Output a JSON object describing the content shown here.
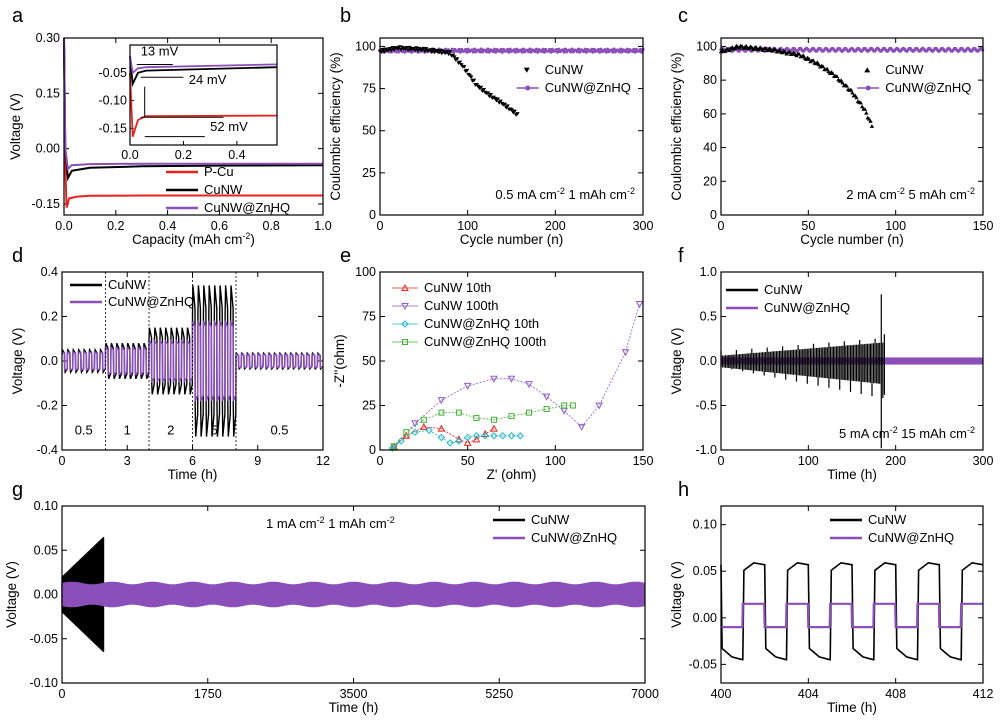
{
  "colors": {
    "black": "#000000",
    "red": "#e8231f",
    "purple": "#8a4fb8",
    "cyan": "#22b9c9",
    "green": "#46b036",
    "violet": "#8d5ec6"
  },
  "chart_data": [
    {
      "id": "a",
      "panel_label": "a",
      "type": "line",
      "xlabel": "Capacity (mAh cm",
      "xlabel_sup": "-2",
      "xlabel_end": ")",
      "ylabel": "Voltage (V)",
      "xlim": [
        0,
        1.0
      ],
      "ylim": [
        -0.18,
        0.3
      ],
      "xticks": [
        "0.0",
        "0.2",
        "0.4",
        "0.6",
        "0.8",
        "1.0"
      ],
      "yticks": [
        "-0.15",
        "0.00",
        "0.15",
        "0.30"
      ],
      "legend": [
        "P-Cu",
        "CuNW",
        "CuNW@ZnHQ"
      ],
      "series": [
        {
          "name": "P-Cu",
          "color": "red",
          "x": [
            0,
            0.005,
            0.01,
            0.02,
            0.05,
            0.1,
            0.3,
            0.6,
            1.0
          ],
          "y": [
            0.3,
            -0.05,
            -0.16,
            -0.135,
            -0.13,
            -0.128,
            -0.127,
            -0.127,
            -0.127
          ]
        },
        {
          "name": "CuNW",
          "color": "black",
          "x": [
            0,
            0.005,
            0.015,
            0.03,
            0.1,
            0.3,
            0.6,
            1.0
          ],
          "y": [
            0.3,
            0.0,
            -0.08,
            -0.06,
            -0.052,
            -0.048,
            -0.046,
            -0.045
          ]
        },
        {
          "name": "CuNW@ZnHQ",
          "color": "purple",
          "x": [
            0,
            0.005,
            0.015,
            0.03,
            0.1,
            0.3,
            0.6,
            1.0
          ],
          "y": [
            0.3,
            0.0,
            -0.055,
            -0.045,
            -0.042,
            -0.041,
            -0.041,
            -0.041
          ]
        }
      ],
      "inset": {
        "xlim": [
          0,
          0.55
        ],
        "ylim": [
          -0.18,
          0.0
        ],
        "xticks": [
          "0.0",
          "0.2",
          "0.4"
        ],
        "yticks": [
          "-0.05",
          "-0.10",
          "-0.15"
        ],
        "annotations": [
          "13 mV",
          "24 mV",
          "52 mV"
        ]
      }
    },
    {
      "id": "b",
      "panel_label": "b",
      "type": "scatter",
      "xlabel": "Cycle number (n)",
      "ylabel": "Coulombic efficiency (%)",
      "xlim": [
        0,
        300
      ],
      "ylim": [
        0,
        105
      ],
      "xticks": [
        "0",
        "100",
        "200",
        "300"
      ],
      "yticks": [
        "0",
        "25",
        "50",
        "75",
        "100"
      ],
      "legend": [
        "CuNW",
        "CuNW@ZnHQ"
      ],
      "annotation": {
        "pre": "0.5 mA cm",
        "sup1": "-2",
        "mid": " 1 mAh cm",
        "sup2": "-2"
      },
      "series": [
        {
          "name": "CuNW",
          "color": "black",
          "x": [
            0,
            20,
            50,
            80,
            95,
            110,
            125,
            140,
            158
          ],
          "y": [
            97,
            99,
            98,
            96,
            88,
            77,
            71,
            66,
            59
          ]
        },
        {
          "name": "CuNW@ZnHQ",
          "color": "purple",
          "x": [
            0,
            300
          ],
          "y": [
            97.5,
            97.5
          ]
        }
      ]
    },
    {
      "id": "c",
      "panel_label": "c",
      "type": "scatter",
      "xlabel": "Cycle number (n)",
      "ylabel": "Coulombic efficiency (%)",
      "xlim": [
        0,
        150
      ],
      "ylim": [
        0,
        105
      ],
      "xticks": [
        "0",
        "50",
        "100",
        "150"
      ],
      "yticks": [
        "0",
        "20",
        "40",
        "60",
        "80",
        "100"
      ],
      "legend": [
        "CuNW",
        "CuNW@ZnHQ"
      ],
      "annotation": {
        "pre": "2 mA cm",
        "sup1": "-2",
        "mid": " 5 mAh cm",
        "sup2": "-2"
      },
      "series": [
        {
          "name": "CuNW",
          "color": "black",
          "x": [
            0,
            10,
            30,
            45,
            55,
            65,
            75,
            82,
            87
          ],
          "y": [
            97,
            100,
            98,
            95,
            90,
            83,
            73,
            63,
            52
          ]
        },
        {
          "name": "CuNW@ZnHQ",
          "color": "purple",
          "x": [
            0,
            150
          ],
          "y": [
            98,
            98
          ]
        }
      ]
    },
    {
      "id": "d",
      "panel_label": "d",
      "type": "line",
      "xlabel": "Time (h)",
      "ylabel": "Voltage (V)",
      "xlim": [
        0,
        12
      ],
      "ylim": [
        -0.4,
        0.4
      ],
      "xticks": [
        "0",
        "3",
        "6",
        "9",
        "12"
      ],
      "yticks": [
        "-0.4",
        "-0.2",
        "0.0",
        "0.2",
        "0.4"
      ],
      "legend": [
        "CuNW",
        "CuNW@ZnHQ"
      ],
      "current_labels": [
        "0.5",
        "1",
        "2",
        "5",
        "0.5"
      ],
      "segments": [
        {
          "t": [
            0,
            2
          ],
          "label": "0.5",
          "cunw_amp": 0.05,
          "znhq_amp": 0.04
        },
        {
          "t": [
            2,
            4
          ],
          "label": "1",
          "cunw_amp": 0.08,
          "znhq_amp": 0.06
        },
        {
          "t": [
            4,
            6
          ],
          "label": "2",
          "cunw_amp": 0.15,
          "znhq_amp": 0.09
        },
        {
          "t": [
            6,
            8
          ],
          "label": "5",
          "cunw_amp": 0.34,
          "znhq_amp": 0.18
        },
        {
          "t": [
            8,
            12
          ],
          "label": "0.5",
          "cunw_amp": 0.035,
          "znhq_amp": 0.03
        }
      ]
    },
    {
      "id": "e",
      "panel_label": "e",
      "type": "scatter",
      "xlabel": "Z' (ohm)",
      "ylabel": "-Z''(ohm)",
      "xlim": [
        0,
        150
      ],
      "ylim": [
        0,
        100
      ],
      "xticks": [
        "0",
        "50",
        "100",
        "150"
      ],
      "yticks": [
        "0",
        "25",
        "50",
        "75",
        "100"
      ],
      "legend": [
        "CuNW 10th",
        "CuNW 100th",
        "CuNW@ZnHQ 10th",
        "CuNW@ZnHQ 100th"
      ],
      "series": [
        {
          "name": "CuNW 10th",
          "color": "red",
          "x": [
            8,
            15,
            25,
            35,
            45,
            50,
            55,
            60,
            65
          ],
          "y": [
            2,
            8,
            13,
            12,
            6,
            4,
            6,
            9,
            12
          ]
        },
        {
          "name": "CuNW 100th",
          "color": "violet",
          "x": [
            8,
            20,
            35,
            50,
            65,
            75,
            85,
            95,
            105,
            115,
            125,
            140,
            148
          ],
          "y": [
            2,
            15,
            28,
            36,
            40,
            40,
            37,
            30,
            22,
            13,
            25,
            55,
            82
          ]
        },
        {
          "name": "CuNW@ZnHQ 10th",
          "color": "cyan",
          "x": [
            7,
            12,
            20,
            28,
            35,
            40,
            45,
            50,
            55,
            60,
            65,
            70,
            75,
            80
          ],
          "y": [
            1,
            5,
            10,
            11,
            7,
            4,
            5,
            7,
            8,
            8,
            8,
            8,
            8,
            8
          ]
        },
        {
          "name": "CuNW@ZnHQ 100th",
          "color": "green",
          "x": [
            8,
            15,
            25,
            35,
            45,
            55,
            65,
            75,
            85,
            95,
            105,
            110
          ],
          "y": [
            2,
            10,
            17,
            21,
            21,
            18,
            17,
            19,
            21,
            23,
            25,
            25
          ]
        }
      ]
    },
    {
      "id": "f",
      "panel_label": "f",
      "type": "line",
      "xlabel": "Time (h)",
      "ylabel": "Voltage (V)",
      "xlim": [
        0,
        340
      ],
      "ylim": [
        -1.0,
        1.0
      ],
      "xticks": [
        "0",
        "100",
        "200",
        "300"
      ],
      "yticks": [
        "-1.0",
        "-0.5",
        "0.0",
        "0.5",
        "1.0"
      ],
      "legend": [
        "CuNW",
        "CuNW@ZnHQ"
      ],
      "annotation": {
        "pre": "5 mA cm",
        "sup1": "-2",
        "mid": " 15 mAh cm",
        "sup2": "-2"
      },
      "cunw_end_time": 213,
      "znhq_amp": 0.04
    },
    {
      "id": "g",
      "panel_label": "g",
      "type": "line",
      "xlabel": "Time (h)",
      "ylabel": "Voltage (V)",
      "xlim": [
        0,
        7000
      ],
      "ylim": [
        -0.1,
        0.1
      ],
      "xticks": [
        "0",
        "1750",
        "3500",
        "5250",
        "7000"
      ],
      "yticks": [
        "-0.10",
        "-0.05",
        "0.00",
        "0.05",
        "0.10"
      ],
      "legend": [
        "CuNW",
        "CuNW@ZnHQ"
      ],
      "annotation": {
        "pre": "1 mA cm",
        "sup1": "-2",
        "mid": " 1 mAh cm",
        "sup2": "-2"
      },
      "cunw_end_time": 500,
      "znhq_amp": 0.013
    },
    {
      "id": "h",
      "panel_label": "h",
      "type": "line",
      "xlabel": "Time (h)",
      "ylabel": "Voltage (V)",
      "xlim": [
        400,
        412
      ],
      "ylim": [
        -0.07,
        0.12
      ],
      "xticks": [
        "400",
        "404",
        "408",
        "412"
      ],
      "yticks": [
        "-0.05",
        "0.00",
        "0.05",
        "0.10"
      ],
      "legend": [
        "CuNW",
        "CuNW@ZnHQ"
      ],
      "cunw_high": 0.057,
      "cunw_low": -0.045,
      "znhq_high": 0.015,
      "znhq_low": -0.01
    }
  ]
}
